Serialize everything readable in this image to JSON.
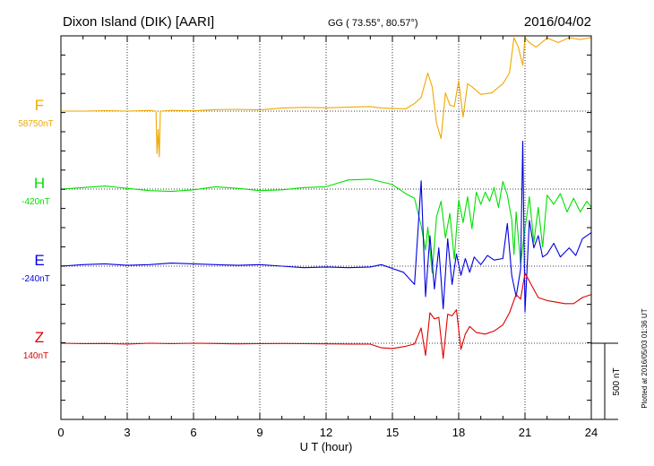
{
  "header": {
    "station": "Dixon Island (DIK)  [AARI]",
    "coords": "GG ( 73.55°,  80.57°)",
    "date": "2016/04/02"
  },
  "footer": {
    "plotted_note": "Plotted at 2016/05/03 01:36 UT"
  },
  "colors": {
    "F": "#f0a800",
    "H": "#00e000",
    "E": "#0000e0",
    "Z": "#e00000"
  },
  "chart_data": {
    "type": "line",
    "xlabel": "U T (hour)",
    "xlim": [
      0,
      24
    ],
    "x_ticks": [
      "0",
      "3",
      "6",
      "9",
      "12",
      "15",
      "18",
      "21",
      "24"
    ],
    "grid": true,
    "scale_bar": {
      "label": "500 nT",
      "value_nT": 500
    },
    "series": [
      {
        "name": "F",
        "baseline": "58750nT",
        "color": "#f0a800",
        "points": [
          [
            0,
            0
          ],
          [
            1,
            0
          ],
          [
            2,
            3
          ],
          [
            3,
            0
          ],
          [
            4,
            4
          ],
          [
            4.3,
            0
          ],
          [
            4.35,
            -280
          ],
          [
            4.4,
            -120
          ],
          [
            4.45,
            -300
          ],
          [
            4.5,
            0
          ],
          [
            5,
            5
          ],
          [
            6,
            2
          ],
          [
            7,
            10
          ],
          [
            8,
            12
          ],
          [
            9,
            8
          ],
          [
            10,
            20
          ],
          [
            11,
            25
          ],
          [
            12,
            22
          ],
          [
            13,
            26
          ],
          [
            14,
            30
          ],
          [
            14.5,
            20
          ],
          [
            15,
            18
          ],
          [
            15.6,
            15
          ],
          [
            16,
            50
          ],
          [
            16.3,
            90
          ],
          [
            16.6,
            250
          ],
          [
            16.8,
            160
          ],
          [
            17,
            -80
          ],
          [
            17.2,
            -180
          ],
          [
            17.4,
            120
          ],
          [
            17.6,
            40
          ],
          [
            17.8,
            30
          ],
          [
            18,
            200
          ],
          [
            18.2,
            -40
          ],
          [
            18.4,
            180
          ],
          [
            18.6,
            160
          ],
          [
            19,
            110
          ],
          [
            19.5,
            120
          ],
          [
            20,
            180
          ],
          [
            20.3,
            250
          ],
          [
            20.5,
            500
          ],
          [
            20.7,
            420
          ],
          [
            20.9,
            300
          ],
          [
            21,
            560
          ],
          [
            21.2,
            450
          ],
          [
            21.5,
            420
          ],
          [
            22,
            480
          ],
          [
            22.5,
            450
          ],
          [
            23,
            500
          ],
          [
            23.5,
            470
          ],
          [
            24,
            510
          ]
        ]
      },
      {
        "name": "H",
        "baseline": "-420nT",
        "color": "#00e000",
        "points": [
          [
            0,
            0
          ],
          [
            1,
            10
          ],
          [
            2,
            20
          ],
          [
            3,
            5
          ],
          [
            4,
            -10
          ],
          [
            5,
            -15
          ],
          [
            6,
            -5
          ],
          [
            7,
            15
          ],
          [
            8,
            5
          ],
          [
            9,
            -10
          ],
          [
            10,
            -5
          ],
          [
            11,
            10
          ],
          [
            12,
            15
          ],
          [
            13,
            60
          ],
          [
            14,
            65
          ],
          [
            15,
            30
          ],
          [
            15.6,
            -30
          ],
          [
            16,
            -60
          ],
          [
            16.3,
            -240
          ],
          [
            16.5,
            -400
          ],
          [
            16.6,
            -250
          ],
          [
            16.8,
            -550
          ],
          [
            17,
            -180
          ],
          [
            17.2,
            -80
          ],
          [
            17.4,
            -320
          ],
          [
            17.6,
            -160
          ],
          [
            17.8,
            -460
          ],
          [
            18,
            -70
          ],
          [
            18.2,
            -220
          ],
          [
            18.4,
            -50
          ],
          [
            18.6,
            -260
          ],
          [
            18.8,
            -20
          ],
          [
            19,
            -100
          ],
          [
            19.2,
            -20
          ],
          [
            19.4,
            -80
          ],
          [
            19.6,
            10
          ],
          [
            19.8,
            -120
          ],
          [
            20,
            50
          ],
          [
            20.2,
            -40
          ],
          [
            20.4,
            -200
          ],
          [
            20.5,
            -430
          ],
          [
            20.6,
            -150
          ],
          [
            20.8,
            -490
          ],
          [
            21,
            -260
          ],
          [
            21.2,
            -50
          ],
          [
            21.4,
            -350
          ],
          [
            21.6,
            -120
          ],
          [
            21.8,
            -380
          ],
          [
            22,
            -40
          ],
          [
            22.3,
            -100
          ],
          [
            22.6,
            -30
          ],
          [
            22.9,
            -150
          ],
          [
            23.2,
            -60
          ],
          [
            23.5,
            -150
          ],
          [
            23.8,
            -80
          ],
          [
            24,
            -120
          ]
        ]
      },
      {
        "name": "E",
        "baseline": "-240nT",
        "color": "#0000e0",
        "points": [
          [
            0,
            0
          ],
          [
            1,
            10
          ],
          [
            2,
            15
          ],
          [
            3,
            5
          ],
          [
            4,
            10
          ],
          [
            5,
            20
          ],
          [
            6,
            15
          ],
          [
            7,
            10
          ],
          [
            8,
            5
          ],
          [
            9,
            10
          ],
          [
            10,
            0
          ],
          [
            11,
            -10
          ],
          [
            12,
            -5
          ],
          [
            13,
            -10
          ],
          [
            14,
            -5
          ],
          [
            14.5,
            10
          ],
          [
            15,
            -15
          ],
          [
            15.5,
            -40
          ],
          [
            16,
            -120
          ],
          [
            16.3,
            560
          ],
          [
            16.5,
            -200
          ],
          [
            16.7,
            200
          ],
          [
            16.9,
            -150
          ],
          [
            17.1,
            120
          ],
          [
            17.3,
            -280
          ],
          [
            17.5,
            180
          ],
          [
            17.7,
            -120
          ],
          [
            17.9,
            80
          ],
          [
            18.1,
            -60
          ],
          [
            18.3,
            50
          ],
          [
            18.5,
            -40
          ],
          [
            18.7,
            60
          ],
          [
            19,
            10
          ],
          [
            19.3,
            70
          ],
          [
            19.6,
            40
          ],
          [
            20,
            50
          ],
          [
            20.2,
            280
          ],
          [
            20.4,
            -60
          ],
          [
            20.6,
            -200
          ],
          [
            20.8,
            -20
          ],
          [
            20.9,
            820
          ],
          [
            21,
            -300
          ],
          [
            21.2,
            300
          ],
          [
            21.4,
            120
          ],
          [
            21.6,
            200
          ],
          [
            21.8,
            60
          ],
          [
            22,
            80
          ],
          [
            22.3,
            150
          ],
          [
            22.6,
            60
          ],
          [
            23,
            120
          ],
          [
            23.3,
            70
          ],
          [
            23.6,
            180
          ],
          [
            24,
            220
          ]
        ]
      },
      {
        "name": "Z",
        "baseline": "140nT",
        "color": "#e00000",
        "points": [
          [
            0,
            0
          ],
          [
            1,
            -3
          ],
          [
            2,
            -2
          ],
          [
            3,
            -5
          ],
          [
            4,
            0
          ],
          [
            5,
            -3
          ],
          [
            6,
            0
          ],
          [
            7,
            -2
          ],
          [
            8,
            -4
          ],
          [
            9,
            -3
          ],
          [
            10,
            -2
          ],
          [
            11,
            -3
          ],
          [
            12,
            -4
          ],
          [
            13,
            -5
          ],
          [
            14,
            -6
          ],
          [
            14.5,
            -30
          ],
          [
            15,
            -35
          ],
          [
            15.6,
            -20
          ],
          [
            16,
            -5
          ],
          [
            16.3,
            100
          ],
          [
            16.5,
            -80
          ],
          [
            16.7,
            200
          ],
          [
            16.9,
            160
          ],
          [
            17.1,
            170
          ],
          [
            17.3,
            -100
          ],
          [
            17.5,
            190
          ],
          [
            17.7,
            180
          ],
          [
            17.9,
            220
          ],
          [
            18.1,
            -40
          ],
          [
            18.3,
            60
          ],
          [
            18.5,
            110
          ],
          [
            18.8,
            70
          ],
          [
            19.2,
            60
          ],
          [
            19.6,
            80
          ],
          [
            20,
            120
          ],
          [
            20.3,
            200
          ],
          [
            20.6,
            320
          ],
          [
            20.8,
            290
          ],
          [
            21,
            460
          ],
          [
            21.3,
            380
          ],
          [
            21.6,
            300
          ],
          [
            22,
            280
          ],
          [
            22.4,
            270
          ],
          [
            22.8,
            260
          ],
          [
            23.2,
            260
          ],
          [
            23.6,
            300
          ],
          [
            24,
            320
          ]
        ]
      }
    ]
  }
}
